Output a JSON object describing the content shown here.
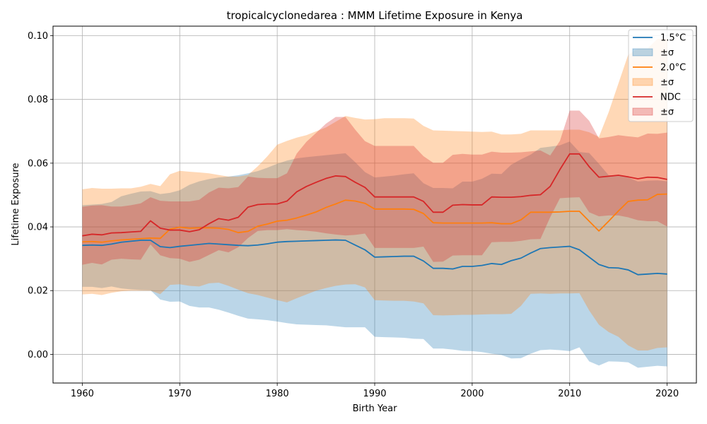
{
  "chart_data": {
    "type": "area",
    "title": "tropicalcyclonedarea : MMM Lifetime Exposure in Kenya",
    "xlabel": "Birth Year",
    "ylabel": "Lifetime Exposure",
    "xlim": [
      1957,
      2023
    ],
    "ylim": [
      -0.009,
      0.103
    ],
    "xticks": [
      1960,
      1970,
      1980,
      1990,
      2000,
      2010,
      2020
    ],
    "xtick_labels": [
      "1960",
      "1970",
      "1980",
      "1990",
      "2000",
      "2010",
      "2020"
    ],
    "yticks": [
      0.0,
      0.02,
      0.04,
      0.06,
      0.08,
      0.1
    ],
    "ytick_labels": [
      "0.00",
      "0.02",
      "0.04",
      "0.06",
      "0.08",
      "0.10"
    ],
    "grid": true,
    "legend_position": "top-right",
    "x": [
      1960,
      1961,
      1962,
      1963,
      1964,
      1965,
      1966,
      1967,
      1968,
      1969,
      1970,
      1971,
      1972,
      1973,
      1974,
      1975,
      1976,
      1977,
      1978,
      1979,
      1980,
      1981,
      1982,
      1983,
      1984,
      1985,
      1986,
      1987,
      1988,
      1989,
      1990,
      1991,
      1992,
      1993,
      1994,
      1995,
      1996,
      1997,
      1998,
      1999,
      2000,
      2001,
      2002,
      2003,
      2004,
      2005,
      2006,
      2007,
      2008,
      2009,
      2010,
      2011,
      2012,
      2013,
      2014,
      2015,
      2016,
      2017,
      2018,
      2019,
      2020
    ],
    "series": [
      {
        "name": "1.5°C",
        "band_name": "±σ",
        "color": "#1f77b4",
        "values": [
          0.0342,
          0.0343,
          0.0342,
          0.0346,
          0.0352,
          0.0355,
          0.0358,
          0.0358,
          0.0338,
          0.0335,
          0.0339,
          0.0342,
          0.0345,
          0.0348,
          0.0346,
          0.0344,
          0.0342,
          0.0341,
          0.0343,
          0.0347,
          0.0352,
          0.0354,
          0.0355,
          0.0356,
          0.0357,
          0.0358,
          0.0359,
          0.0358,
          0.0343,
          0.0328,
          0.0305,
          0.0306,
          0.0307,
          0.0308,
          0.0308,
          0.0293,
          0.027,
          0.027,
          0.0268,
          0.0276,
          0.0276,
          0.0279,
          0.0285,
          0.0282,
          0.0294,
          0.0302,
          0.0318,
          0.0332,
          0.0335,
          0.0337,
          0.0339,
          0.0328,
          0.0305,
          0.0282,
          0.0272,
          0.0271,
          0.0265,
          0.025,
          0.0252,
          0.0254,
          0.0252
        ],
        "lower": [
          0.0212,
          0.0212,
          0.0208,
          0.0213,
          0.0207,
          0.0204,
          0.0202,
          0.0201,
          0.0172,
          0.0165,
          0.0166,
          0.0152,
          0.0147,
          0.0147,
          0.014,
          0.0131,
          0.0121,
          0.0112,
          0.011,
          0.0107,
          0.0103,
          0.0098,
          0.0094,
          0.0093,
          0.0092,
          0.0091,
          0.0088,
          0.0085,
          0.0085,
          0.0085,
          0.0055,
          0.0054,
          0.0053,
          0.0052,
          0.0049,
          0.0048,
          0.0018,
          0.0018,
          0.0015,
          0.0011,
          0.001,
          0.0007,
          0.0002,
          -0.0002,
          -0.0013,
          -0.0012,
          0.0002,
          0.0013,
          0.0015,
          0.0013,
          0.001,
          0.0022,
          -0.0022,
          -0.0035,
          -0.0022,
          -0.0023,
          -0.0025,
          -0.0042,
          -0.0039,
          -0.0036,
          -0.0038
        ],
        "upper": [
          0.0468,
          0.047,
          0.0472,
          0.0478,
          0.0496,
          0.0504,
          0.0511,
          0.0512,
          0.0503,
          0.0507,
          0.0515,
          0.0532,
          0.0543,
          0.055,
          0.0555,
          0.0558,
          0.0562,
          0.0568,
          0.0575,
          0.0586,
          0.0598,
          0.0608,
          0.0615,
          0.0619,
          0.0622,
          0.0625,
          0.0628,
          0.0631,
          0.0603,
          0.0572,
          0.0555,
          0.0558,
          0.0561,
          0.0565,
          0.0568,
          0.0537,
          0.0522,
          0.0522,
          0.0521,
          0.0542,
          0.0542,
          0.0551,
          0.0567,
          0.0566,
          0.0595,
          0.0612,
          0.0627,
          0.0648,
          0.0652,
          0.0656,
          0.0668,
          0.0635,
          0.0632,
          0.0598,
          0.0562,
          0.056,
          0.0555,
          0.0542,
          0.0545,
          0.0546,
          0.0543
        ]
      },
      {
        "name": "2.0°C",
        "band_name": "±σ",
        "color": "#ff7f0e",
        "values": [
          0.0353,
          0.0354,
          0.0352,
          0.0356,
          0.0359,
          0.0361,
          0.0363,
          0.0365,
          0.0364,
          0.0393,
          0.0399,
          0.0396,
          0.0397,
          0.0397,
          0.0396,
          0.0392,
          0.0382,
          0.0386,
          0.0402,
          0.0409,
          0.0418,
          0.0421,
          0.0428,
          0.0437,
          0.0447,
          0.0461,
          0.0472,
          0.0484,
          0.0481,
          0.0474,
          0.0456,
          0.0456,
          0.0456,
          0.0456,
          0.0455,
          0.0442,
          0.0413,
          0.0412,
          0.0412,
          0.0412,
          0.0412,
          0.0412,
          0.0413,
          0.041,
          0.041,
          0.0422,
          0.0446,
          0.0446,
          0.0446,
          0.0447,
          0.0449,
          0.0449,
          0.0418,
          0.0387,
          0.0418,
          0.045,
          0.048,
          0.0484,
          0.0485,
          0.0502,
          0.0503
        ],
        "lower": [
          0.0188,
          0.019,
          0.0186,
          0.0193,
          0.0198,
          0.02,
          0.02,
          0.02,
          0.0189,
          0.0218,
          0.022,
          0.0215,
          0.0213,
          0.0223,
          0.0225,
          0.0215,
          0.0203,
          0.0192,
          0.0186,
          0.0178,
          0.017,
          0.0163,
          0.0176,
          0.0188,
          0.02,
          0.0208,
          0.0215,
          0.0219,
          0.022,
          0.021,
          0.017,
          0.0169,
          0.0168,
          0.0168,
          0.0166,
          0.016,
          0.0123,
          0.0122,
          0.0123,
          0.0124,
          0.0124,
          0.0125,
          0.0126,
          0.0126,
          0.0127,
          0.0152,
          0.019,
          0.0191,
          0.019,
          0.0191,
          0.0191,
          0.0192,
          0.0138,
          0.0093,
          0.007,
          0.0055,
          0.0028,
          0.0012,
          0.0012,
          0.002,
          0.0022
        ],
        "upper": [
          0.0518,
          0.0522,
          0.052,
          0.052,
          0.0521,
          0.0521,
          0.0526,
          0.0535,
          0.0528,
          0.0565,
          0.0576,
          0.0573,
          0.0571,
          0.0568,
          0.0563,
          0.0558,
          0.0558,
          0.0563,
          0.059,
          0.0622,
          0.0658,
          0.067,
          0.068,
          0.0688,
          0.07,
          0.0712,
          0.073,
          0.0748,
          0.0742,
          0.0737,
          0.0738,
          0.0741,
          0.0741,
          0.0741,
          0.074,
          0.0717,
          0.0703,
          0.0702,
          0.0701,
          0.07,
          0.0699,
          0.0698,
          0.0699,
          0.069,
          0.069,
          0.0692,
          0.0703,
          0.0703,
          0.0703,
          0.0703,
          0.0705,
          0.0705,
          0.0697,
          0.0682,
          0.076,
          0.085,
          0.094,
          0.096,
          0.096,
          0.099,
          0.099
        ]
      },
      {
        "name": "NDC",
        "band_name": "±σ",
        "color": "#d62728",
        "values": [
          0.0372,
          0.0377,
          0.0375,
          0.0381,
          0.0382,
          0.0384,
          0.0386,
          0.0419,
          0.0396,
          0.039,
          0.039,
          0.0385,
          0.0391,
          0.041,
          0.0426,
          0.0421,
          0.043,
          0.0462,
          0.047,
          0.0472,
          0.0472,
          0.0481,
          0.051,
          0.0527,
          0.054,
          0.0552,
          0.056,
          0.0558,
          0.054,
          0.0524,
          0.0494,
          0.0494,
          0.0494,
          0.0494,
          0.0494,
          0.048,
          0.0446,
          0.0446,
          0.0468,
          0.047,
          0.0469,
          0.0469,
          0.0494,
          0.0493,
          0.0493,
          0.0495,
          0.0499,
          0.0501,
          0.0527,
          0.058,
          0.0629,
          0.0629,
          0.0589,
          0.0556,
          0.0559,
          0.0562,
          0.0557,
          0.0551,
          0.0556,
          0.0555,
          0.0549
        ],
        "lower": [
          0.0281,
          0.0287,
          0.0282,
          0.0297,
          0.03,
          0.0298,
          0.0297,
          0.0345,
          0.0311,
          0.0302,
          0.03,
          0.029,
          0.0297,
          0.0312,
          0.0327,
          0.032,
          0.0336,
          0.0365,
          0.0387,
          0.039,
          0.039,
          0.0393,
          0.039,
          0.0388,
          0.0385,
          0.038,
          0.0376,
          0.0373,
          0.0375,
          0.0379,
          0.0334,
          0.0334,
          0.0334,
          0.0334,
          0.0334,
          0.0338,
          0.029,
          0.0291,
          0.031,
          0.0311,
          0.0311,
          0.0311,
          0.0352,
          0.0353,
          0.0353,
          0.0356,
          0.0361,
          0.0362,
          0.043,
          0.049,
          0.0492,
          0.0493,
          0.0446,
          0.0433,
          0.0436,
          0.0436,
          0.043,
          0.0421,
          0.0418,
          0.0418,
          0.0401
        ],
        "upper": [
          0.0463,
          0.0467,
          0.0468,
          0.0464,
          0.0464,
          0.0468,
          0.0474,
          0.0493,
          0.0482,
          0.048,
          0.048,
          0.048,
          0.0485,
          0.0508,
          0.0523,
          0.0521,
          0.0525,
          0.0558,
          0.0554,
          0.0553,
          0.0553,
          0.0568,
          0.063,
          0.0667,
          0.0695,
          0.0724,
          0.0745,
          0.0745,
          0.0705,
          0.0669,
          0.0654,
          0.0654,
          0.0654,
          0.0654,
          0.0654,
          0.0622,
          0.0601,
          0.0601,
          0.0626,
          0.0629,
          0.0627,
          0.0627,
          0.0636,
          0.0633,
          0.0633,
          0.0634,
          0.0637,
          0.064,
          0.0624,
          0.067,
          0.0765,
          0.0765,
          0.0733,
          0.0678,
          0.0682,
          0.0688,
          0.0684,
          0.0681,
          0.0693,
          0.0692,
          0.0696
        ]
      }
    ]
  }
}
